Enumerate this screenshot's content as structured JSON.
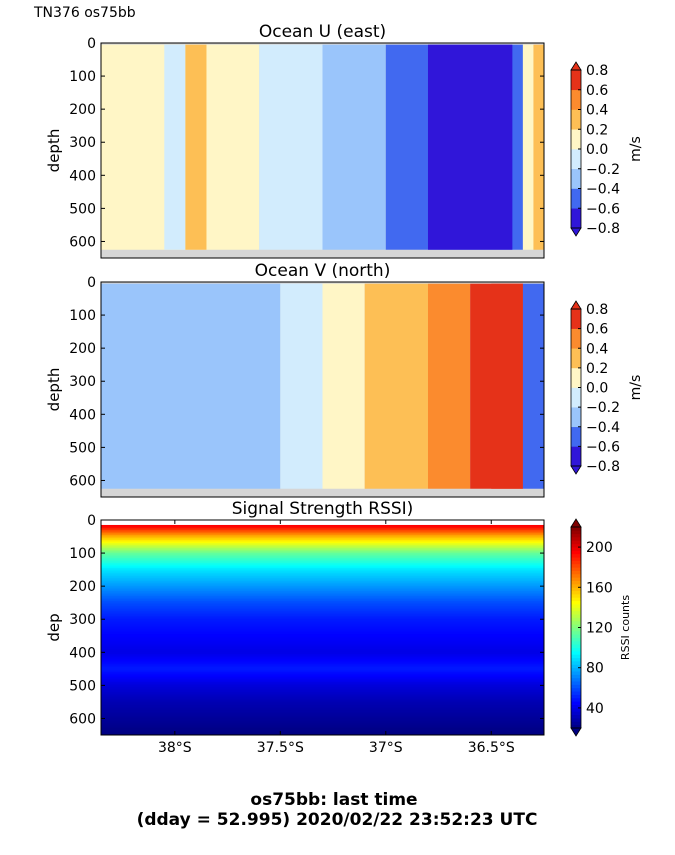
{
  "header": {
    "corner_label": "TN376 os75bb"
  },
  "footer": {
    "line1": "os75bb: last time",
    "line2": "(dday = 52.995) 2020/02/22 23:52:23 UTC"
  },
  "chart_data": [
    {
      "type": "heatmap",
      "title": "Ocean U (east)",
      "ylabel": "depth",
      "ylim": [
        650,
        0
      ],
      "y_ticks": [
        "0",
        "100",
        "200",
        "300",
        "400",
        "500",
        "600"
      ],
      "y_tick_values": [
        0,
        100,
        200,
        300,
        400,
        500,
        600
      ],
      "xlim": [
        38.35,
        36.25
      ],
      "colorbar": {
        "label": "m/s",
        "tick_labels": [
          "0.8",
          "0.6",
          "0.4",
          "0.2",
          "0.0",
          "−0.2",
          "−0.4",
          "−0.6",
          "−0.8"
        ],
        "tick_values": [
          0.8,
          0.6,
          0.4,
          0.2,
          0.0,
          -0.2,
          -0.4,
          -0.6,
          -0.8
        ],
        "levels": [
          -0.8,
          -0.6,
          -0.4,
          -0.2,
          0.0,
          0.2,
          0.4,
          0.6,
          0.8
        ],
        "colors": [
          "#3016d9",
          "#4169f0",
          "#9ac5fb",
          "#d2ecfd",
          "#fff6c6",
          "#fdbf55",
          "#fb8b2e",
          "#e53219"
        ],
        "extend": "both"
      },
      "regions": [
        {
          "x0": 38.35,
          "x1": 37.6,
          "value": 0.1
        },
        {
          "x0": 38.05,
          "x1": 37.95,
          "value": -0.1
        },
        {
          "x0": 37.95,
          "x1": 37.85,
          "value": 0.25
        },
        {
          "x0": 37.6,
          "x1": 37.3,
          "value": -0.1
        },
        {
          "x0": 37.3,
          "x1": 37.0,
          "value": -0.3
        },
        {
          "x0": 37.0,
          "x1": 36.35,
          "value": -0.5
        },
        {
          "x0": 36.8,
          "x1": 36.4,
          "value": -0.7
        },
        {
          "x0": 36.35,
          "x1": 36.3,
          "value": 0.1
        },
        {
          "x0": 36.3,
          "x1": 36.25,
          "value": 0.25
        }
      ]
    },
    {
      "type": "heatmap",
      "title": "Ocean V (north)",
      "ylabel": "depth",
      "ylim": [
        650,
        0
      ],
      "y_ticks": [
        "0",
        "100",
        "200",
        "300",
        "400",
        "500",
        "600"
      ],
      "y_tick_values": [
        0,
        100,
        200,
        300,
        400,
        500,
        600
      ],
      "xlim": [
        38.35,
        36.25
      ],
      "colorbar": {
        "label": "m/s",
        "tick_labels": [
          "0.8",
          "0.6",
          "0.4",
          "0.2",
          "0.0",
          "−0.2",
          "−0.4",
          "−0.6",
          "−0.8"
        ],
        "tick_values": [
          0.8,
          0.6,
          0.4,
          0.2,
          0.0,
          -0.2,
          -0.4,
          -0.6,
          -0.8
        ],
        "levels": [
          -0.8,
          -0.6,
          -0.4,
          -0.2,
          0.0,
          0.2,
          0.4,
          0.6,
          0.8
        ],
        "colors": [
          "#3016d9",
          "#4169f0",
          "#9ac5fb",
          "#d2ecfd",
          "#fff6c6",
          "#fdbf55",
          "#fb8b2e",
          "#e53219"
        ],
        "extend": "both"
      },
      "regions": [
        {
          "x0": 38.35,
          "x1": 37.5,
          "value": -0.3
        },
        {
          "x0": 37.5,
          "x1": 37.3,
          "value": -0.1
        },
        {
          "x0": 37.3,
          "x1": 37.1,
          "value": 0.1
        },
        {
          "x0": 37.1,
          "x1": 36.8,
          "value": 0.3
        },
        {
          "x0": 36.8,
          "x1": 36.6,
          "value": 0.5
        },
        {
          "x0": 36.6,
          "x1": 36.35,
          "value": 0.7
        },
        {
          "x0": 36.5,
          "x1": 36.35,
          "value": 0.85
        },
        {
          "x0": 36.35,
          "x1": 36.25,
          "value": -0.5
        }
      ]
    },
    {
      "type": "heatmap",
      "title": "Signal Strength RSSI)",
      "ylabel": "dep",
      "ylim": [
        650,
        0
      ],
      "y_ticks": [
        "0",
        "100",
        "200",
        "300",
        "400",
        "500",
        "600"
      ],
      "y_tick_values": [
        0,
        100,
        200,
        300,
        400,
        500,
        600
      ],
      "xlim": [
        38.35,
        36.25
      ],
      "x_ticks": [
        "38°S",
        "37.5°S",
        "37°S",
        "36.5°S"
      ],
      "x_tick_values": [
        38.0,
        37.5,
        37.0,
        36.5
      ],
      "colorbar": {
        "label": "RSSI counts",
        "tick_labels": [
          "200",
          "160",
          "120",
          "80",
          "40"
        ],
        "tick_values": [
          200,
          160,
          120,
          80,
          40
        ],
        "vmin": 20,
        "vmax": 220,
        "colormap": "jet",
        "extend": "both"
      },
      "depth_profile": [
        {
          "depth": 20,
          "value": 195
        },
        {
          "depth": 50,
          "value": 160
        },
        {
          "depth": 100,
          "value": 115
        },
        {
          "depth": 150,
          "value": 90
        },
        {
          "depth": 200,
          "value": 75
        },
        {
          "depth": 250,
          "value": 60
        },
        {
          "depth": 300,
          "value": 50
        },
        {
          "depth": 350,
          "value": 45
        },
        {
          "depth": 400,
          "value": 40
        },
        {
          "depth": 450,
          "value": 50
        },
        {
          "depth": 500,
          "value": 38
        },
        {
          "depth": 550,
          "value": 30
        },
        {
          "depth": 600,
          "value": 25
        },
        {
          "depth": 650,
          "value": 20
        }
      ]
    }
  ]
}
